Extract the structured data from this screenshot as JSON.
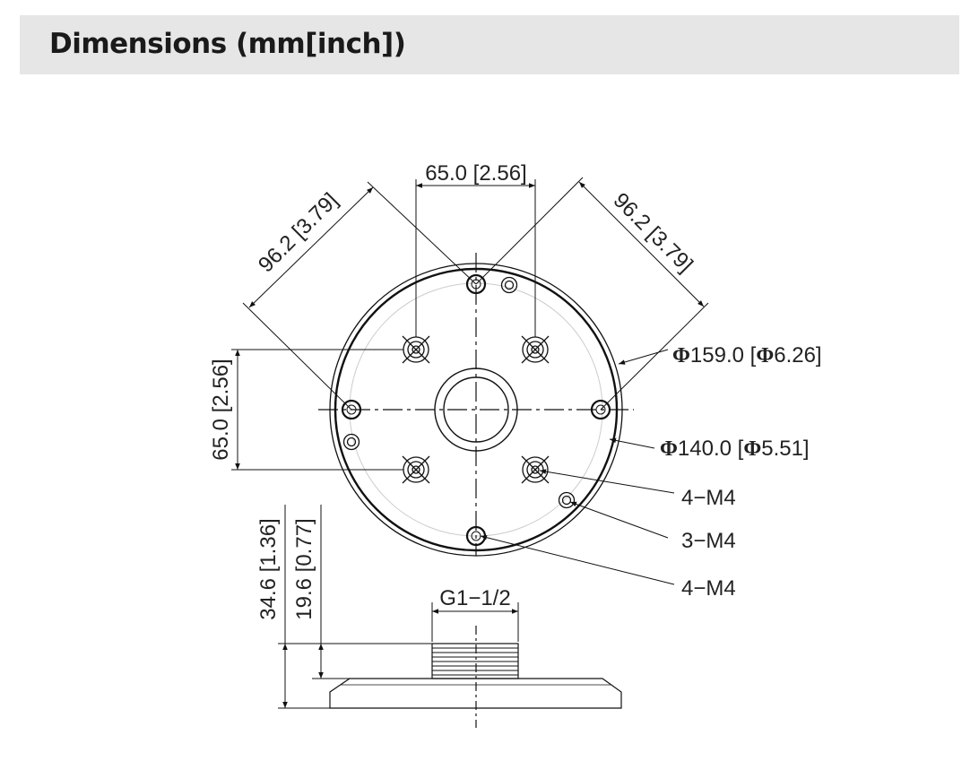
{
  "header": {
    "title": "Dimensions (mm[inch])"
  },
  "drawing": {
    "top_width": "65.0 [2.56]",
    "left_height": "65.0 [2.56]",
    "diag_left": "96.2 [3.79]",
    "diag_right": "96.2 [3.79]",
    "outer_diameter_symbol": "Φ",
    "outer_diameter": "159.0 [",
    "outer_diameter_inch": "6.26]",
    "inner_diameter": "140.0 [",
    "inner_diameter_inch": "5.51]",
    "screw_label_1": "4−M4",
    "screw_label_2": "3−M4",
    "screw_label_3": "4−M4",
    "total_height": "34.6 [1.36]",
    "thread_height": "19.6 [0.77]",
    "thread": "G1−1/2"
  }
}
